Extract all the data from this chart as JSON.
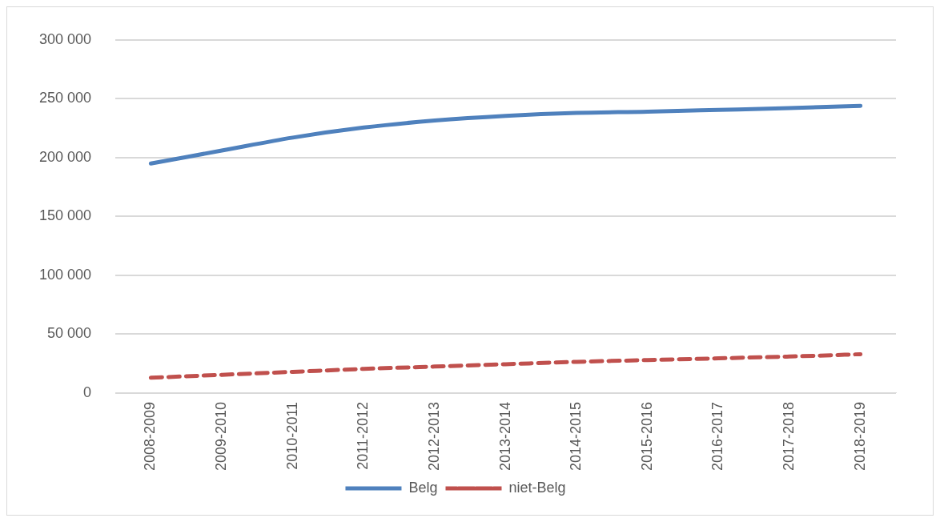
{
  "chart_data": {
    "type": "line",
    "categories": [
      "2008-2009",
      "2009-2010",
      "2010-2011",
      "2011-2012",
      "2012-2013",
      "2013-2014",
      "2014-2015",
      "2015-2016",
      "2016-2017",
      "2017-2018",
      "2018-2019"
    ],
    "series": [
      {
        "name": "Belg",
        "color": "#4f81bd",
        "line_style": "solid",
        "values": [
          195000,
          206000,
          217000,
          225500,
          231500,
          235500,
          238000,
          239000,
          240500,
          242000,
          244000
        ]
      },
      {
        "name": "niet-Belg",
        "color": "#c0504d",
        "line_style": "dashed",
        "values": [
          13000,
          15500,
          18000,
          20500,
          22500,
          24500,
          26500,
          28000,
          29500,
          31000,
          33000
        ]
      }
    ],
    "ylim": [
      0,
      300000
    ],
    "yticks": [
      {
        "value": 0,
        "label": "0"
      },
      {
        "value": 50000,
        "label": "50 000"
      },
      {
        "value": 100000,
        "label": "100 000"
      },
      {
        "value": 150000,
        "label": "150 000"
      },
      {
        "value": 200000,
        "label": "200 000"
      },
      {
        "value": 250000,
        "label": "250 000"
      },
      {
        "value": 300000,
        "label": "300 000"
      }
    ],
    "grid": "y",
    "legend": "bottom",
    "marker": "none"
  }
}
